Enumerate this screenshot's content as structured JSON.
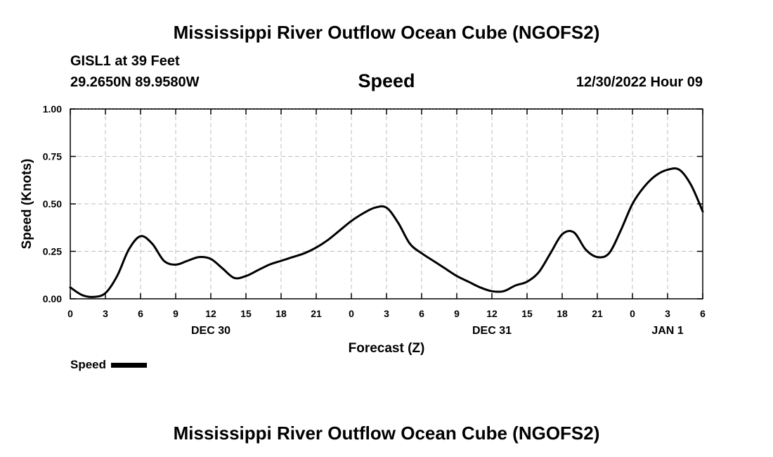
{
  "header": {
    "title": "Mississippi River Outflow Ocean Cube (NGOFS2)",
    "station": "GISL1 at 39 Feet",
    "coords": "29.2650N  89.9580W",
    "datetime": "12/30/2022 Hour 09"
  },
  "footer": {
    "title": "Mississippi River Outflow Ocean Cube (NGOFS2)"
  },
  "colors": {
    "line": "#000000",
    "grid": "#bdbdbd"
  },
  "chart_data": {
    "type": "line",
    "title": "Speed",
    "xlabel": "Forecast (Z)",
    "ylabel": "Speed (Knots)",
    "xlim": [
      0,
      54
    ],
    "ylim": [
      0,
      1
    ],
    "x_ticks": [
      0,
      3,
      6,
      9,
      12,
      15,
      18,
      21,
      24,
      27,
      30,
      33,
      36,
      39,
      42,
      45,
      48,
      51,
      54
    ],
    "x_tick_labels": [
      "0",
      "3",
      "6",
      "9",
      "12",
      "15",
      "18",
      "21",
      "0",
      "3",
      "6",
      "9",
      "12",
      "15",
      "18",
      "21",
      "0",
      "3",
      "6"
    ],
    "y_ticks": [
      0,
      0.25,
      0.5,
      0.75,
      1.0
    ],
    "y_tick_labels": [
      "0.00",
      "0.25",
      "0.50",
      "0.75",
      "1.00"
    ],
    "date_labels": [
      {
        "x": 12,
        "label": "DEC 30"
      },
      {
        "x": 36,
        "label": "DEC 31"
      },
      {
        "x": 51,
        "label": "JAN 1"
      }
    ],
    "grid": true,
    "legend": "bottom-left",
    "series": [
      {
        "name": "Speed",
        "x": [
          0,
          1,
          2,
          3,
          4,
          5,
          6,
          7,
          8,
          9,
          10,
          11,
          12,
          13,
          14,
          15,
          16,
          17,
          18,
          19,
          20,
          21,
          22,
          23,
          24,
          25,
          26,
          27,
          28,
          29,
          30,
          31,
          32,
          33,
          34,
          35,
          36,
          37,
          38,
          39,
          40,
          41,
          42,
          43,
          44,
          45,
          46,
          47,
          48,
          49,
          50,
          51,
          52,
          53,
          54
        ],
        "values": [
          0.06,
          0.02,
          0.01,
          0.03,
          0.12,
          0.26,
          0.33,
          0.29,
          0.2,
          0.18,
          0.2,
          0.22,
          0.21,
          0.16,
          0.11,
          0.12,
          0.15,
          0.18,
          0.2,
          0.22,
          0.24,
          0.27,
          0.31,
          0.36,
          0.41,
          0.45,
          0.48,
          0.48,
          0.4,
          0.29,
          0.24,
          0.2,
          0.16,
          0.12,
          0.09,
          0.06,
          0.04,
          0.04,
          0.07,
          0.09,
          0.14,
          0.24,
          0.34,
          0.35,
          0.26,
          0.22,
          0.24,
          0.36,
          0.5,
          0.59,
          0.65,
          0.68,
          0.68,
          0.6,
          0.46
        ]
      }
    ]
  }
}
